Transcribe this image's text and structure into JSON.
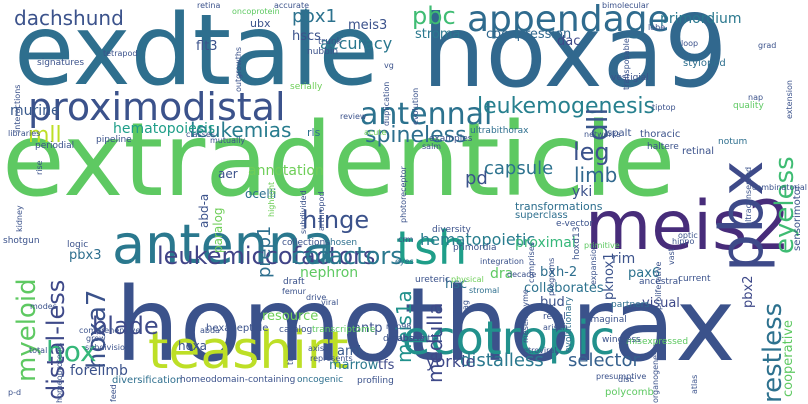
{
  "words": [
    {
      "t": "exdtale",
      "c": "#2e6f8e"
    },
    {
      "t": "hoxa9",
      "c": "#31688e"
    },
    {
      "t": "extradenticle",
      "c": "#5ec962"
    },
    {
      "t": "homothorax",
      "c": "#3b528b"
    },
    {
      "t": "teashirt",
      "c": "#bddf26"
    },
    {
      "t": "meis2",
      "c": "#472c7a"
    },
    {
      "t": "antenna",
      "c": "#2a788e"
    },
    {
      "t": "pbx",
      "c": "#3e4a89"
    },
    {
      "t": "proximodistal",
      "c": "#3b528b"
    },
    {
      "t": "appendage",
      "c": "#2f6b8e"
    },
    {
      "t": "ecotropic",
      "c": "#21918c"
    },
    {
      "t": "tsh",
      "c": "#1f9e89"
    },
    {
      "t": "antennal",
      "c": "#2c728e"
    },
    {
      "t": "leukemogenesis",
      "c": "#27808e"
    },
    {
      "t": "myeloid",
      "c": "#5ec962"
    },
    {
      "t": "leukemiccofactors",
      "c": "#414487"
    },
    {
      "t": "distal-less",
      "c": "#3e4989"
    },
    {
      "t": "hoxa7",
      "c": "#3b528b"
    },
    {
      "t": "blade",
      "c": "#3e4a89"
    },
    {
      "t": "hox",
      "c": "#35b779"
    },
    {
      "t": "dachshund",
      "c": "#3b528b"
    },
    {
      "t": "pbx1",
      "c": "#2c728e"
    },
    {
      "t": "pbc",
      "c": "#3fbc73"
    },
    {
      "t": "accuracy",
      "c": "#2a788e"
    },
    {
      "t": "dll",
      "c": "#39568c"
    },
    {
      "t": "eyeless",
      "c": "#3fbc73"
    },
    {
      "t": "restless",
      "c": "#2d718e"
    },
    {
      "t": "leg",
      "c": "#3b528b"
    },
    {
      "t": "limb",
      "c": "#31688e"
    },
    {
      "t": "leukemias",
      "c": "#287c8e"
    },
    {
      "t": "mll",
      "c": "#bddf26"
    },
    {
      "t": "hinge",
      "c": "#3b528b"
    },
    {
      "t": "spineless",
      "c": "#2e6f8e"
    },
    {
      "t": "meis1a",
      "c": "#21918c"
    },
    {
      "t": "medulla",
      "c": "#3e4989"
    },
    {
      "t": "capsule",
      "c": "#2c728e"
    },
    {
      "t": "pd",
      "c": "#3b528b"
    },
    {
      "t": "prep1",
      "c": "#2e6f8e"
    },
    {
      "t": "selector",
      "c": "#35608d"
    },
    {
      "t": "distalless",
      "c": "#2a788e"
    },
    {
      "t": "yorkie",
      "c": "#3e4989"
    },
    {
      "t": "cofactors",
      "c": "#2a788e"
    },
    {
      "t": "hematopoietic",
      "c": "#287d8e"
    },
    {
      "t": "hematopoiesis",
      "c": "#1f9e89"
    },
    {
      "t": "annotation",
      "c": "#6ece58"
    },
    {
      "t": "stroma",
      "c": "#2a788e"
    },
    {
      "t": "coexpression",
      "c": "#31688e"
    },
    {
      "t": "meis3",
      "c": "#3b528b"
    },
    {
      "t": "hscs",
      "c": "#3b528b"
    },
    {
      "t": "flt3",
      "c": "#3b528b"
    },
    {
      "t": "dac",
      "c": "#3e4989"
    },
    {
      "t": "primordium",
      "c": "#2a788e"
    },
    {
      "t": "yki",
      "c": "#3b528b"
    },
    {
      "t": "murine",
      "c": "#38598c"
    },
    {
      "t": "nephron",
      "c": "#5ec962"
    },
    {
      "t": "proximal",
      "c": "#35b779"
    },
    {
      "t": "bxh-2",
      "c": "#2e6f8e"
    },
    {
      "t": "pknox1",
      "c": "#3b528b"
    },
    {
      "t": "rim",
      "c": "#3b528b"
    },
    {
      "t": "pax6",
      "c": "#2c728e"
    },
    {
      "t": "dra",
      "c": "#5ec962"
    },
    {
      "t": "collaborates",
      "c": "#2c728e"
    },
    {
      "t": "visual",
      "c": "#3e4989"
    },
    {
      "t": "pbx2",
      "c": "#3e4989"
    },
    {
      "t": "cooperative",
      "c": "#5ec962"
    },
    {
      "t": "bud",
      "c": "#3b528b"
    },
    {
      "t": "hsc",
      "c": "#2e6f8e"
    },
    {
      "t": "antp",
      "c": "#3b528b"
    },
    {
      "t": "aml",
      "c": "#38598c"
    },
    {
      "t": "marrow",
      "c": "#2a788e"
    },
    {
      "t": "tfs",
      "c": "#3e4989"
    },
    {
      "t": "resource",
      "c": "#6ece58"
    },
    {
      "t": "forelimb",
      "c": "#3b528b"
    },
    {
      "t": "hoxa",
      "c": "#3b528b"
    },
    {
      "t": "pbx3",
      "c": "#2e6f8e"
    },
    {
      "t": "abd-a",
      "c": "#3b528b"
    },
    {
      "t": "paralog",
      "c": "#6ece58"
    },
    {
      "t": "aer",
      "c": "#3b528b"
    },
    {
      "t": "ocelli",
      "c": "#2e6f8e"
    },
    {
      "t": "rls",
      "c": "#2e6f8e"
    },
    {
      "t": "nubbin",
      "c": "#3b528b"
    },
    {
      "t": "trunk",
      "c": "#3b528b"
    },
    {
      "t": "ubx",
      "c": "#3b528b"
    },
    {
      "t": "stylopod",
      "c": "#2e6f8e"
    },
    {
      "t": "tiptop",
      "c": "#3b528b"
    },
    {
      "t": "thoracic",
      "c": "#3b528b"
    },
    {
      "t": "haltere",
      "c": "#3b528b"
    },
    {
      "t": "retinal",
      "c": "#3b528b"
    },
    {
      "t": "notum",
      "c": "#2e6f8e"
    },
    {
      "t": "vestigial",
      "c": "#3b528b"
    },
    {
      "t": "spalt",
      "c": "#3b528b"
    },
    {
      "t": "transformations",
      "c": "#2e6f8e"
    },
    {
      "t": "superclass",
      "c": "#2e6f8e"
    },
    {
      "t": "hoxd13",
      "c": "#3b528b"
    },
    {
      "t": "e-vector",
      "c": "#3b528b"
    },
    {
      "t": "ultrabithorax",
      "c": "#2e6f8e"
    },
    {
      "t": "hexapeptide",
      "c": "#3b528b"
    },
    {
      "t": "catalog",
      "c": "#3b528b"
    },
    {
      "t": "transcriptome",
      "c": "#5ec962"
    },
    {
      "t": "diversification",
      "c": "#2e6f8e"
    },
    {
      "t": "homeodomain-containing",
      "c": "#3b528b"
    },
    {
      "t": "oncogenic",
      "c": "#2e6f8e"
    },
    {
      "t": "profiling",
      "c": "#3b528b"
    },
    {
      "t": "polycomb",
      "c": "#5ec962"
    },
    {
      "t": "misexpressed",
      "c": "#5ec962"
    },
    {
      "t": "database",
      "c": "#3b528b"
    },
    {
      "t": "substantial",
      "c": "#3b528b"
    },
    {
      "t": "retroviral",
      "c": "#3b528b"
    },
    {
      "t": "nup98",
      "c": "#3b528b"
    },
    {
      "t": "wingless",
      "c": "#3b528b"
    },
    {
      "t": "evolutionary",
      "c": "#2e6f8e"
    },
    {
      "t": "mesenchyme",
      "c": "#3b528b"
    },
    {
      "t": "imaginal",
      "c": "#3b528b"
    },
    {
      "t": "partners",
      "c": "#2e6f8e"
    },
    {
      "t": "renal",
      "c": "#3b528b"
    },
    {
      "t": "arisen",
      "c": "#3b528b"
    },
    {
      "t": "ancestral",
      "c": "#3b528b"
    },
    {
      "t": "current",
      "c": "#3b528b"
    },
    {
      "t": "stromal",
      "c": "#2e6f8e"
    },
    {
      "t": "decade",
      "c": "#3b528b"
    },
    {
      "t": "physical",
      "c": "#6ece58"
    },
    {
      "t": "ureteric",
      "c": "#3b528b"
    },
    {
      "t": "eyes",
      "c": "#2e6f8e"
    },
    {
      "t": "drive",
      "c": "#3b528b"
    },
    {
      "t": "viral",
      "c": "#3b528b"
    },
    {
      "t": "femur",
      "c": "#3b528b"
    },
    {
      "t": "draft",
      "c": "#3b528b"
    },
    {
      "t": "collections",
      "c": "#3b528b"
    },
    {
      "t": "chosen",
      "c": "#2e6f8e"
    },
    {
      "t": "diversity",
      "c": "#3b528b"
    },
    {
      "t": "primordia",
      "c": "#3b528b"
    },
    {
      "t": "integration",
      "c": "#3b528b"
    },
    {
      "t": "logic",
      "c": "#3b528b"
    },
    {
      "t": "shotgun",
      "c": "#3b528b"
    },
    {
      "t": "grow",
      "c": "#3b528b"
    },
    {
      "t": "comprehensive",
      "c": "#3b528b"
    },
    {
      "t": "p-d",
      "c": "#3b528b"
    },
    {
      "t": "total",
      "c": "#3b528b"
    },
    {
      "t": "modes",
      "c": "#3b528b"
    },
    {
      "t": "libraries",
      "c": "#3b528b"
    },
    {
      "t": "periodial",
      "c": "#3b528b"
    },
    {
      "t": "pipeline",
      "c": "#3b528b"
    },
    {
      "t": "classes",
      "c": "#3b528b"
    },
    {
      "t": "mutually",
      "c": "#3b528b"
    },
    {
      "t": "serially",
      "c": "#6ece58"
    },
    {
      "t": "review",
      "c": "#3b528b"
    },
    {
      "t": "acute",
      "c": "#6ece58"
    },
    {
      "t": "examples",
      "c": "#3b528b"
    },
    {
      "t": "salm",
      "c": "#3b528b"
    },
    {
      "t": "networks",
      "c": "#3b528b"
    },
    {
      "t": "quality",
      "c": "#5ec962"
    },
    {
      "t": "combinatorial",
      "c": "#3b528b"
    },
    {
      "t": "ultraconserved",
      "c": "#3b528b"
    },
    {
      "t": "sensorimotor",
      "c": "#3b528b"
    },
    {
      "t": "tetrapod",
      "c": "#3b528b"
    },
    {
      "t": "signatures",
      "c": "#3b528b"
    },
    {
      "t": "interactions",
      "c": "#3b528b"
    },
    {
      "t": "extension",
      "c": "#3b528b"
    },
    {
      "t": "duplication",
      "c": "#3b528b"
    },
    {
      "t": "evolution",
      "c": "#3b528b"
    },
    {
      "t": "outgrowths",
      "c": "#3b528b"
    },
    {
      "t": "accurate",
      "c": "#3b528b"
    },
    {
      "t": "oncoprotein",
      "c": "#5ec962"
    },
    {
      "t": "retina",
      "c": "#3b528b"
    },
    {
      "t": "bimolecular",
      "c": "#3b528b"
    },
    {
      "t": "lobe",
      "c": "#3b528b"
    },
    {
      "t": "loop",
      "c": "#3b528b"
    },
    {
      "t": "nap",
      "c": "#3b528b"
    },
    {
      "t": "vg",
      "c": "#3b528b"
    },
    {
      "t": "transposable",
      "c": "#3b528b"
    },
    {
      "t": "proliferative",
      "c": "#3b528b"
    },
    {
      "t": "vast",
      "c": "#3b528b"
    },
    {
      "t": "optic",
      "c": "#3b528b"
    },
    {
      "t": "hippo",
      "c": "#3b528b"
    },
    {
      "t": "primitive",
      "c": "#5ec962"
    },
    {
      "t": "expansion",
      "c": "#3b528b"
    },
    {
      "t": "comprises",
      "c": "#3b528b"
    },
    {
      "t": "photoreceptor",
      "c": "#3b528b"
    },
    {
      "t": "arthropod",
      "c": "#3b528b"
    },
    {
      "t": "subdivided",
      "c": "#3b528b"
    },
    {
      "t": "highlight",
      "c": "#6ece58"
    },
    {
      "t": "kidney",
      "c": "#3b528b"
    },
    {
      "t": "rise",
      "c": "#3b528b"
    },
    {
      "t": "crm",
      "c": "#3b528b"
    },
    {
      "t": "abda",
      "c": "#3b528b"
    },
    {
      "t": "axis",
      "c": "#3b528b"
    },
    {
      "t": "represents",
      "c": "#3b528b"
    },
    {
      "t": "tio",
      "c": "#3b528b"
    },
    {
      "t": "presumptive",
      "c": "#3b528b"
    },
    {
      "t": "atlas",
      "c": "#3b528b"
    },
    {
      "t": "disc",
      "c": "#3b528b"
    },
    {
      "t": "organogenesis",
      "c": "#3b528b"
    },
    {
      "t": "homeoproteins",
      "c": "#3b528b"
    },
    {
      "t": "feed",
      "c": "#3b528b"
    },
    {
      "t": "subdivision",
      "c": "#3b528b"
    },
    {
      "t": "programs",
      "c": "#3b528b"
    },
    {
      "t": "ag",
      "c": "#3b528b"
    },
    {
      "t": "grad",
      "c": "#3b528b"
    }
  ]
}
